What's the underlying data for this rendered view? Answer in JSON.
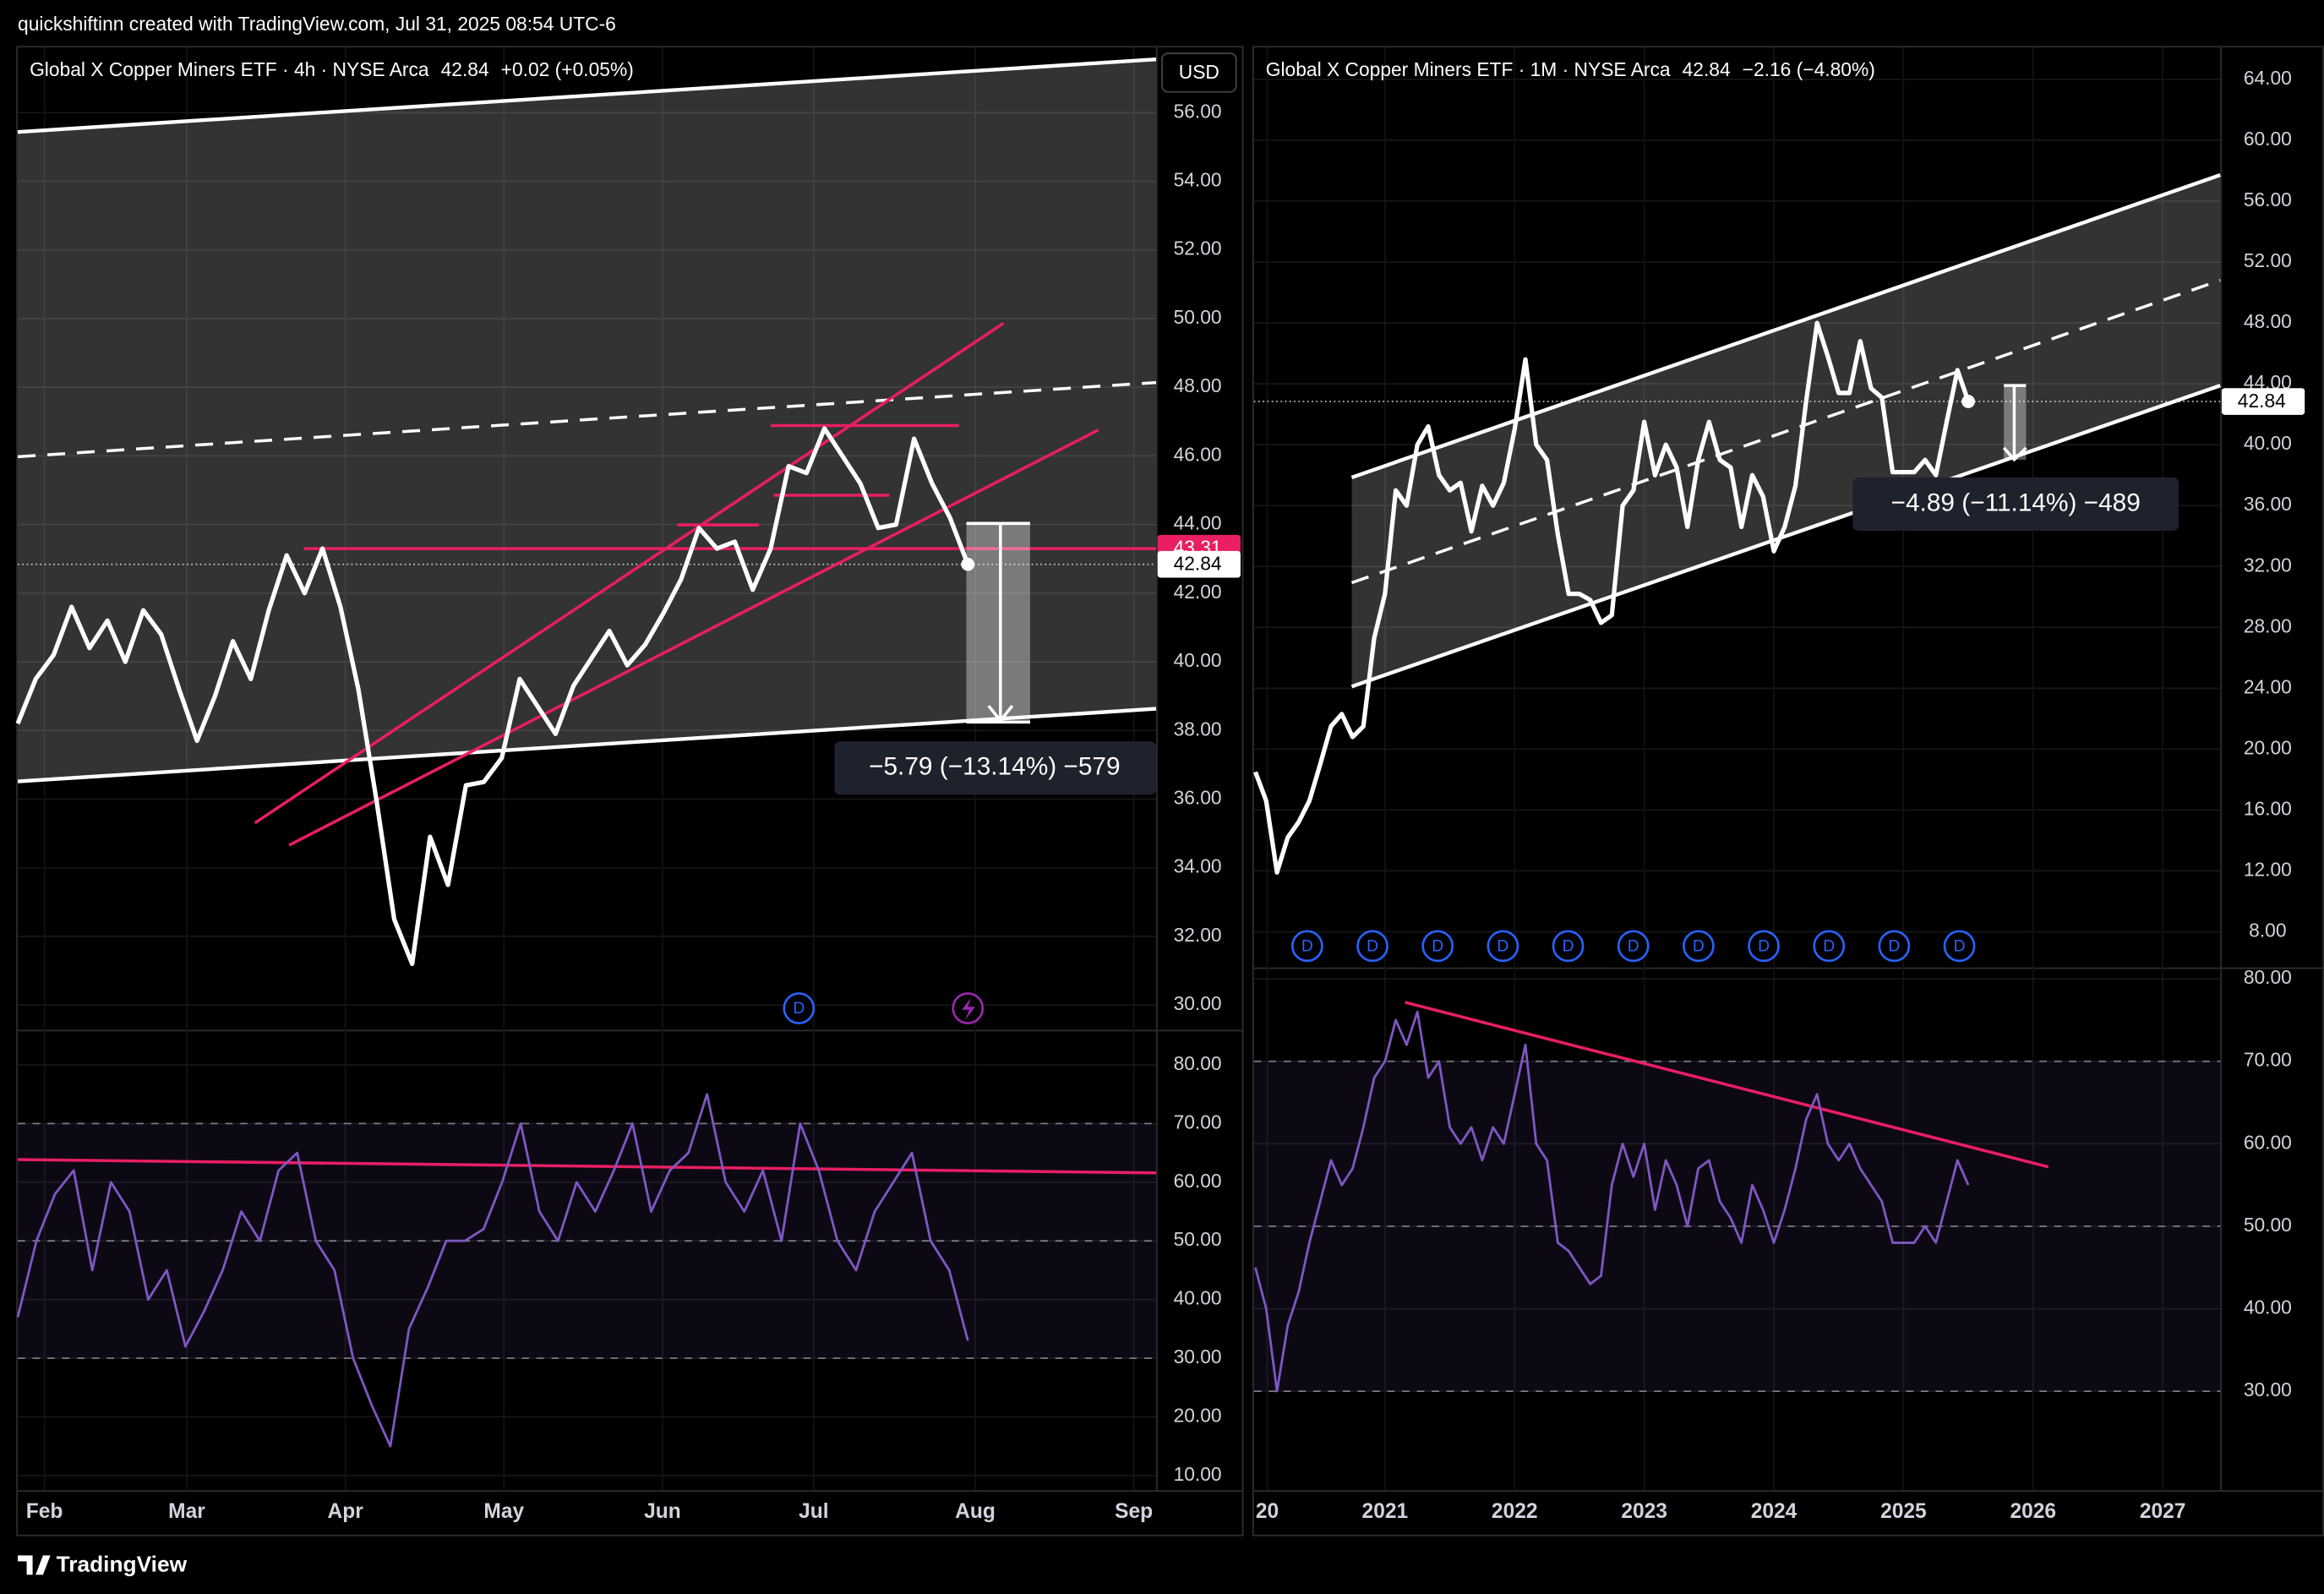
{
  "header": "quickshiftinn created with TradingView.com, Jul 31, 2025 08:54 UTC-6",
  "footer": "TradingView",
  "chart_data": [
    {
      "type": "line",
      "title": "Global X Copper Miners ETF · 4h · NYSE Arca",
      "last": "42.84",
      "change": "+0.02 (+0.05%)",
      "currency": "USD",
      "x_labels": [
        "Feb",
        "Mar",
        "Apr",
        "May",
        "Jun",
        "Jul",
        "Aug",
        "Sep"
      ],
      "values": [
        38.2,
        39.5,
        40.2,
        41.6,
        40.4,
        41.2,
        40.0,
        41.5,
        40.8,
        39.2,
        37.7,
        39.0,
        40.6,
        39.5,
        41.5,
        43.1,
        42.0,
        43.3,
        41.6,
        39.2,
        36.0,
        32.5,
        31.2,
        34.9,
        33.5,
        36.4,
        36.5,
        37.2,
        39.5,
        38.7,
        37.9,
        39.3,
        40.1,
        40.9,
        39.9,
        40.5,
        41.4,
        42.4,
        43.9,
        43.3,
        43.5,
        42.1,
        43.3,
        45.7,
        45.5,
        46.8,
        46.0,
        45.2,
        43.9,
        44.0,
        46.5,
        45.2,
        44.2,
        42.84
      ],
      "color": "#ffffff",
      "ylim": [
        29.3,
        57.9
      ],
      "yticks": [
        {
          "value": 30,
          "label": "30.00"
        },
        {
          "value": 32,
          "label": "32.00"
        },
        {
          "value": 34,
          "label": "34.00"
        },
        {
          "value": 36,
          "label": "36.00"
        },
        {
          "value": 38,
          "label": "38.00"
        },
        {
          "value": 40,
          "label": "40.00"
        },
        {
          "value": 42,
          "label": "42.00"
        },
        {
          "value": 44,
          "label": "44.00"
        },
        {
          "value": 46,
          "label": "46.00"
        },
        {
          "value": 48,
          "label": "48.00"
        },
        {
          "value": 50,
          "label": "50.00"
        },
        {
          "value": 52,
          "label": "52.00"
        },
        {
          "value": 54,
          "label": "54.00"
        },
        {
          "value": 56,
          "label": "56.00"
        }
      ],
      "marker_prices": [
        43.31,
        42.84
      ],
      "measure_label": "−5.79 (−13.14%) −579",
      "dividend_marker": "D",
      "grid": true
    },
    {
      "type": "line",
      "values": [
        37,
        50,
        58,
        62,
        45,
        60,
        55,
        40,
        45,
        32,
        38,
        45,
        55,
        50,
        62,
        65,
        50,
        45,
        30,
        22,
        15,
        35,
        42,
        50,
        50,
        52,
        60,
        70,
        55,
        50,
        60,
        55,
        62,
        70,
        55,
        62,
        65,
        75,
        60,
        55,
        62,
        50,
        70,
        62,
        50,
        45,
        55,
        60,
        65,
        50,
        45,
        33
      ],
      "color": "#7e57c2",
      "ylim": [
        7.5,
        85.6
      ],
      "yticks": [
        {
          "value": 10,
          "label": "10.00"
        },
        {
          "value": 20,
          "label": "20.00"
        },
        {
          "value": 30,
          "label": "30.00"
        },
        {
          "value": 40,
          "label": "40.00"
        },
        {
          "value": 50,
          "label": "50.00"
        },
        {
          "value": 60,
          "label": "60.00"
        },
        {
          "value": 70,
          "label": "70.00"
        },
        {
          "value": 80,
          "label": "80.00"
        }
      ],
      "levels": [
        70,
        50,
        30
      ],
      "grid": true
    },
    {
      "type": "line",
      "title": "Global X Copper Miners ETF · 1M · NYSE Arca",
      "last": "42.84",
      "change": "−2.16 (−4.80%)",
      "x_labels": [
        "20",
        "2021",
        "2022",
        "2023",
        "2024",
        "2025",
        "2026",
        "2027"
      ],
      "values": [
        18.5,
        16.6,
        11.9,
        14.2,
        15.2,
        16.6,
        19.0,
        21.5,
        22.3,
        20.8,
        21.5,
        27.3,
        30.2,
        37.0,
        36.0,
        40.0,
        41.2,
        38.0,
        37.0,
        37.5,
        34.3,
        37.3,
        36.0,
        37.5,
        41.0,
        45.6,
        40.0,
        39.0,
        34.1,
        30.2,
        30.2,
        29.8,
        28.3,
        28.8,
        36.0,
        37.0,
        41.5,
        38.0,
        40.0,
        38.5,
        34.6,
        39.0,
        41.5,
        39.0,
        38.5,
        34.6,
        38.0,
        36.6,
        33.0,
        34.6,
        37.3,
        42.9,
        48.0,
        45.8,
        43.4,
        43.4,
        46.8,
        43.7,
        43.1,
        38.2,
        38.2,
        38.2,
        39.0,
        38.0,
        41.5,
        44.9,
        42.84
      ],
      "color": "#ffffff",
      "ylim": [
        5.7,
        66.1
      ],
      "yticks": [
        {
          "value": 8,
          "label": "8.00"
        },
        {
          "value": 12,
          "label": "12.00"
        },
        {
          "value": 16,
          "label": "16.00"
        },
        {
          "value": 20,
          "label": "20.00"
        },
        {
          "value": 24,
          "label": "24.00"
        },
        {
          "value": 28,
          "label": "28.00"
        },
        {
          "value": 32,
          "label": "32.00"
        },
        {
          "value": 36,
          "label": "36.00"
        },
        {
          "value": 40,
          "label": "40.00"
        },
        {
          "value": 44,
          "label": "44.00"
        },
        {
          "value": 48,
          "label": "48.00"
        },
        {
          "value": 52,
          "label": "52.00"
        },
        {
          "value": 56,
          "label": "56.00"
        },
        {
          "value": 60,
          "label": "60.00"
        },
        {
          "value": 64,
          "label": "64.00"
        }
      ],
      "marker_prices": [
        42.84
      ],
      "measure_label": "−4.89 (−11.14%) −489",
      "dividend_marker": "D",
      "grid": true
    },
    {
      "type": "line",
      "values": [
        45,
        40,
        30,
        38,
        42,
        48,
        53,
        58,
        55,
        57,
        62,
        68,
        70,
        75,
        72,
        76,
        68,
        70,
        62,
        60,
        62,
        58,
        62,
        60,
        66,
        72,
        60,
        58,
        48,
        47,
        45,
        43,
        44,
        55,
        60,
        56,
        60,
        52,
        58,
        55,
        50,
        57,
        58,
        53,
        51,
        48,
        55,
        52,
        48,
        52,
        57,
        63,
        66,
        60,
        58,
        60,
        57,
        55,
        53,
        48,
        48,
        48,
        50,
        48,
        53,
        58,
        55
      ],
      "color": "#7e57c2",
      "ylim": [
        18.0,
        81.1
      ],
      "yticks": [
        {
          "value": 30,
          "label": "30.00"
        },
        {
          "value": 40,
          "label": "40.00"
        },
        {
          "value": 50,
          "label": "50.00"
        },
        {
          "value": 60,
          "label": "60.00"
        },
        {
          "value": 70,
          "label": "70.00"
        },
        {
          "value": 80,
          "label": "80.00"
        }
      ],
      "levels": [
        70,
        50,
        30
      ],
      "grid": true
    }
  ]
}
